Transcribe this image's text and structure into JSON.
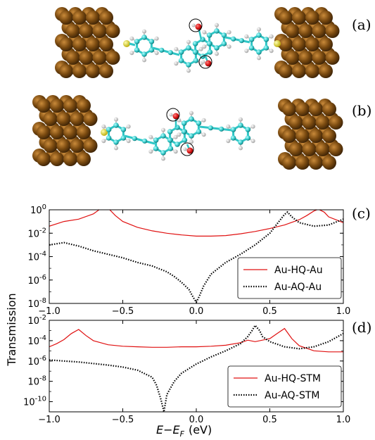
{
  "panel_labels": [
    "(a)",
    "(b)",
    "(c)",
    "(d)"
  ],
  "colors": {
    "gold_atom": "#7a4a10",
    "carbon": "#2fc6c6",
    "hydrogen": "#e6e6e6",
    "oxygen": "#d81414",
    "sulfur": "#e8e03a",
    "hq_line": "#e01010",
    "aq_line": "#000000"
  },
  "xlabel": {
    "main": "E−E",
    "sub": "F",
    "unit": "(eV)"
  },
  "ylabel": "Transmission",
  "chart_data": [
    {
      "type": "line",
      "panel": "(c)",
      "xlim": [
        -1.0,
        1.0
      ],
      "ylim": [
        -8,
        0
      ],
      "y_scale": "log10",
      "x_ticks": [
        "−1.0",
        "−0.5",
        "0.0",
        "0.5",
        "1.0"
      ],
      "y_ticks": [
        {
          "base": "10",
          "exp": "0"
        },
        {
          "base": "10",
          "exp": "-2"
        },
        {
          "base": "10",
          "exp": "-4"
        },
        {
          "base": "10",
          "exp": "-6"
        },
        {
          "base": "10",
          "exp": "-8"
        }
      ],
      "legend": "bottom-right",
      "series": [
        {
          "name": "Au-HQ-Au",
          "style": "solid",
          "x": [
            -1.0,
            -0.9,
            -0.8,
            -0.7,
            -0.65,
            -0.6,
            -0.55,
            -0.5,
            -0.4,
            -0.3,
            -0.2,
            -0.1,
            0.0,
            0.1,
            0.2,
            0.3,
            0.4,
            0.5,
            0.6,
            0.7,
            0.75,
            0.8,
            0.83,
            0.87,
            0.9,
            1.0
          ],
          "log10_y": [
            -1.4,
            -1.0,
            -0.8,
            -0.35,
            0.1,
            0.15,
            -0.5,
            -1.0,
            -1.5,
            -1.8,
            -2.0,
            -2.15,
            -2.25,
            -2.25,
            -2.2,
            -2.05,
            -1.85,
            -1.6,
            -1.3,
            -0.85,
            -0.5,
            -0.1,
            0.05,
            -0.2,
            -0.6,
            -1.1
          ]
        },
        {
          "name": "Au-AQ-Au",
          "style": "dotted",
          "x": [
            -1.0,
            -0.9,
            -0.8,
            -0.7,
            -0.6,
            -0.5,
            -0.4,
            -0.3,
            -0.2,
            -0.15,
            -0.1,
            -0.05,
            -0.02,
            0.0,
            0.02,
            0.05,
            0.1,
            0.2,
            0.3,
            0.4,
            0.5,
            0.55,
            0.6,
            0.62,
            0.65,
            0.7,
            0.8,
            0.9,
            1.0
          ],
          "log10_y": [
            -3.0,
            -2.8,
            -3.1,
            -3.5,
            -3.8,
            -4.1,
            -4.5,
            -4.8,
            -5.3,
            -5.7,
            -6.2,
            -6.8,
            -7.5,
            -7.9,
            -7.4,
            -6.5,
            -5.5,
            -4.5,
            -3.8,
            -3.0,
            -2.0,
            -1.2,
            -0.4,
            -0.2,
            -0.6,
            -1.1,
            -1.4,
            -1.3,
            -0.8
          ]
        }
      ]
    },
    {
      "type": "line",
      "panel": "(d)",
      "xlim": [
        -1.0,
        1.0
      ],
      "ylim": [
        -11,
        -2
      ],
      "y_scale": "log10",
      "x_ticks": [
        "−1.0",
        "−0.5",
        "0.0",
        "0.5",
        "1.0"
      ],
      "y_ticks": [
        {
          "base": "10",
          "exp": "-2"
        },
        {
          "base": "10",
          "exp": "-4"
        },
        {
          "base": "10",
          "exp": "-6"
        },
        {
          "base": "10",
          "exp": "-8"
        },
        {
          "base": "10",
          "exp": "-10"
        }
      ],
      "legend": "bottom-right",
      "series": [
        {
          "name": "Au-HQ-STM",
          "style": "solid",
          "x": [
            -1.0,
            -0.95,
            -0.9,
            -0.85,
            -0.8,
            -0.75,
            -0.7,
            -0.6,
            -0.5,
            -0.4,
            -0.3,
            -0.2,
            -0.1,
            0.0,
            0.1,
            0.2,
            0.3,
            0.35,
            0.4,
            0.5,
            0.55,
            0.6,
            0.65,
            0.7,
            0.8,
            0.9,
            1.0
          ],
          "log10_y": [
            -4.6,
            -4.3,
            -3.9,
            -3.3,
            -2.9,
            -3.5,
            -4.0,
            -4.4,
            -4.55,
            -4.6,
            -4.65,
            -4.65,
            -4.6,
            -4.6,
            -4.55,
            -4.45,
            -4.2,
            -3.95,
            -4.1,
            -3.8,
            -3.3,
            -2.8,
            -3.8,
            -4.5,
            -5.0,
            -5.1,
            -5.1
          ]
        },
        {
          "name": "Au-AQ-STM",
          "style": "dotted",
          "x": [
            -1.0,
            -0.9,
            -0.8,
            -0.7,
            -0.6,
            -0.5,
            -0.4,
            -0.3,
            -0.27,
            -0.24,
            -0.22,
            -0.2,
            -0.15,
            -0.1,
            0.0,
            0.1,
            0.2,
            0.3,
            0.35,
            0.38,
            0.4,
            0.43,
            0.45,
            0.5,
            0.6,
            0.7,
            0.8,
            0.9,
            1.0
          ],
          "log10_y": [
            -5.9,
            -6.0,
            -6.1,
            -6.25,
            -6.4,
            -6.6,
            -6.9,
            -7.6,
            -8.4,
            -9.8,
            -11.0,
            -9.3,
            -8.0,
            -7.2,
            -6.3,
            -5.6,
            -5.0,
            -4.3,
            -3.6,
            -3.0,
            -2.5,
            -3.0,
            -3.6,
            -4.1,
            -4.6,
            -4.8,
            -4.6,
            -4.1,
            -3.3
          ]
        }
      ]
    }
  ]
}
